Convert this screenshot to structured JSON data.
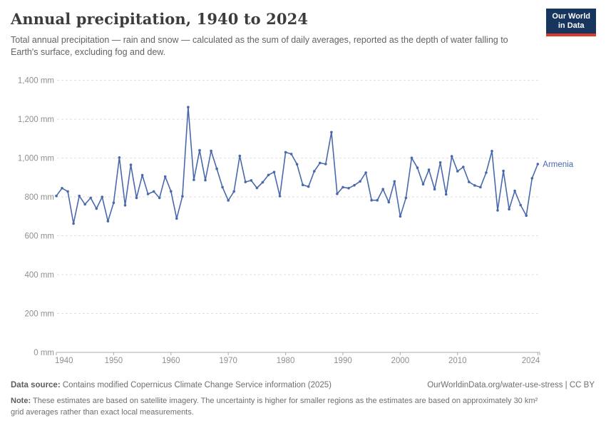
{
  "header": {
    "title": "Annual precipitation, 1940 to 2024",
    "subtitle": "Total annual precipitation — rain and snow — calculated as the sum of daily averages, reported as the depth of water falling to Earth's surface, excluding fog and dew."
  },
  "logo": {
    "line1": "Our World",
    "line2": "in Data",
    "bg": "#18355E",
    "accent": "#DB3B26"
  },
  "chart_data": {
    "type": "line",
    "title": "Annual precipitation, 1940 to 2024",
    "xlabel": "",
    "ylabel": "",
    "ylim": [
      0,
      1400
    ],
    "grid": "horizontal-dashed",
    "legend": "line-end-label",
    "x": [
      1940,
      1941,
      1942,
      1943,
      1944,
      1945,
      1946,
      1947,
      1948,
      1949,
      1950,
      1951,
      1952,
      1953,
      1954,
      1955,
      1956,
      1957,
      1958,
      1959,
      1960,
      1961,
      1962,
      1963,
      1964,
      1965,
      1966,
      1967,
      1968,
      1969,
      1970,
      1971,
      1972,
      1973,
      1974,
      1975,
      1976,
      1977,
      1978,
      1979,
      1980,
      1981,
      1982,
      1983,
      1984,
      1985,
      1986,
      1987,
      1988,
      1989,
      1990,
      1991,
      1992,
      1993,
      1994,
      1995,
      1996,
      1997,
      1998,
      1999,
      2000,
      2001,
      2002,
      2003,
      2004,
      2005,
      2006,
      2007,
      2008,
      2009,
      2010,
      2011,
      2012,
      2013,
      2014,
      2015,
      2016,
      2017,
      2018,
      2019,
      2020,
      2021,
      2022,
      2023,
      2024
    ],
    "series": [
      {
        "name": "Armenia",
        "color": "#4A69AD",
        "unit": "mm",
        "values": [
          805,
          845,
          828,
          663,
          805,
          762,
          795,
          740,
          800,
          675,
          770,
          1003,
          757,
          965,
          795,
          912,
          815,
          828,
          795,
          905,
          829,
          689,
          803,
          1262,
          888,
          1040,
          886,
          1037,
          945,
          850,
          782,
          828,
          1011,
          877,
          885,
          846,
          875,
          913,
          928,
          804,
          1030,
          1021,
          968,
          862,
          853,
          932,
          975,
          969,
          1133,
          816,
          850,
          845,
          860,
          880,
          925,
          783,
          783,
          840,
          773,
          880,
          700,
          795,
          1001,
          950,
          865,
          940,
          840,
          977,
          813,
          1009,
          932,
          954,
          877,
          859,
          850,
          925,
          1036,
          731,
          934,
          737,
          831,
          758,
          704,
          896,
          969
        ]
      }
    ],
    "y_ticks": [
      0,
      200,
      400,
      600,
      800,
      1000,
      1200,
      1400
    ],
    "y_tick_labels": [
      "0 mm",
      "200 mm",
      "400 mm",
      "600 mm",
      "800 mm",
      "1,000 mm",
      "1,200 mm",
      "1,400 mm"
    ],
    "x_ticks": [
      1940,
      1950,
      1960,
      1970,
      1980,
      1990,
      2000,
      2010,
      2024
    ],
    "x_tick_labels": [
      "1940",
      "1950",
      "1960",
      "1970",
      "1980",
      "1990",
      "2000",
      "2010",
      "2024"
    ]
  },
  "styles": {
    "line_color": "#4A69AD",
    "grid_color": "#DEDEDE",
    "axis_color": "#ABABAB",
    "tick_label_color": "#8F8F8F"
  },
  "footer": {
    "source_label": "Data source:",
    "source_text": "Contains modified Copernicus Climate Change Service information (2025)",
    "right_text": "OurWorldinData.org/water-use-stress | CC BY",
    "note_label": "Note:",
    "note_text": "These estimates are based on satellite imagery. The uncertainty is higher for smaller regions as the estimates are based on approximately 30 km² grid averages rather than exact local measurements."
  }
}
